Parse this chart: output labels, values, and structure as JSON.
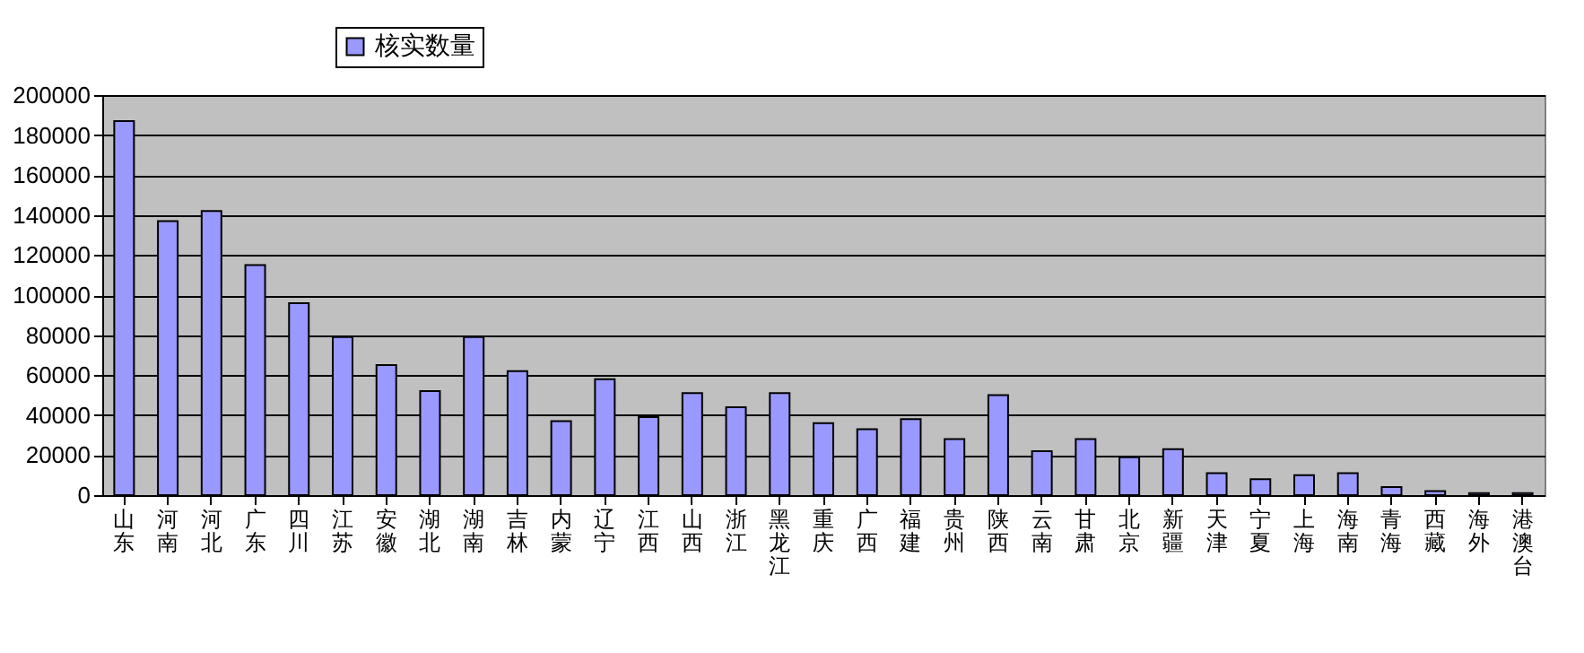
{
  "chart_data": {
    "type": "bar",
    "categories": [
      "山东",
      "河南",
      "河北",
      "广东",
      "四川",
      "江苏",
      "安徽",
      "湖北",
      "湖南",
      "吉林",
      "内蒙",
      "辽宁",
      "江西",
      "山西",
      "浙江",
      "黑龙江",
      "重庆",
      "广西",
      "福建",
      "贵州",
      "陕西",
      "云南",
      "甘肃",
      "北京",
      "新疆",
      "天津",
      "宁夏",
      "上海",
      "海南",
      "青海",
      "西藏",
      "海外",
      "港澳台"
    ],
    "series": [
      {
        "name": "核实数量",
        "color": "#9999ff",
        "values": [
          187000,
          137000,
          142000,
          115000,
          96000,
          79000,
          65000,
          52000,
          79000,
          62000,
          37000,
          58000,
          39000,
          51000,
          44000,
          51000,
          36000,
          33000,
          38000,
          28000,
          50000,
          22000,
          28000,
          19000,
          23000,
          11000,
          8000,
          10000,
          11000,
          4000,
          2000,
          1000,
          1000
        ]
      }
    ],
    "ylim": [
      0,
      200000
    ],
    "yticks": [
      0,
      20000,
      40000,
      60000,
      80000,
      100000,
      120000,
      140000,
      160000,
      180000,
      200000
    ],
    "grid": "y",
    "legend": "top left"
  }
}
